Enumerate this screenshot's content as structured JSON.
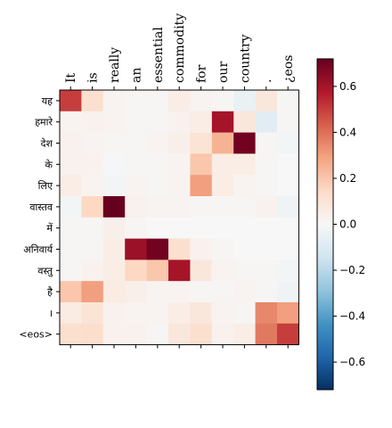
{
  "chart_data": {
    "type": "heatmap",
    "title": "",
    "x_tokens": [
      "It",
      "is",
      "really",
      "an",
      "essential",
      "commodity",
      "for",
      "our",
      "country",
      ".",
      "¿eos"
    ],
    "y_tokens": [
      "यह",
      "हमारे",
      "देश",
      "के",
      "लिए",
      "वास्तव",
      "में",
      "अनिवार्य",
      "वस्तु",
      "है",
      "।",
      "<eos>"
    ],
    "values": [
      [
        0.5,
        0.12,
        0.02,
        0.01,
        0.01,
        0.05,
        0.02,
        0.01,
        -0.05,
        0.08,
        0.01
      ],
      [
        0.02,
        0.03,
        0.02,
        0.01,
        0.01,
        0.03,
        0.05,
        0.6,
        0.08,
        -0.08,
        0.01
      ],
      [
        0.03,
        0.02,
        0.01,
        0.01,
        0.02,
        0.04,
        0.1,
        0.25,
        0.7,
        0.01,
        -0.02
      ],
      [
        0.03,
        0.03,
        -0.01,
        0.01,
        0.01,
        0.02,
        0.2,
        0.05,
        0.05,
        0.01,
        0.0
      ],
      [
        0.05,
        0.02,
        -0.02,
        0.02,
        0.01,
        0.02,
        0.3,
        0.05,
        0.02,
        0.01,
        0.0
      ],
      [
        -0.02,
        0.15,
        0.72,
        0.03,
        0.02,
        0.02,
        0.01,
        0.01,
        0.01,
        0.03,
        -0.03
      ],
      [
        0.01,
        0.01,
        0.04,
        0.01,
        0.0,
        0.0,
        0.0,
        0.0,
        0.0,
        0.0,
        0.0
      ],
      [
        0.01,
        0.01,
        0.05,
        0.62,
        0.7,
        0.12,
        0.03,
        0.01,
        0.0,
        0.0,
        0.0
      ],
      [
        0.01,
        0.03,
        0.05,
        0.15,
        0.2,
        0.6,
        0.08,
        0.02,
        0.01,
        0.01,
        -0.02
      ],
      [
        0.2,
        0.3,
        0.06,
        0.04,
        0.02,
        0.02,
        0.01,
        0.01,
        0.02,
        0.01,
        -0.03
      ],
      [
        0.06,
        0.1,
        0.03,
        0.02,
        0.02,
        0.05,
        0.08,
        0.02,
        0.01,
        0.35,
        0.3
      ],
      [
        0.12,
        0.13,
        0.03,
        0.03,
        0.01,
        0.08,
        0.12,
        0.03,
        0.05,
        0.38,
        0.5
      ]
    ],
    "colorbar": {
      "colormap": "RdBu_r",
      "vmin": -0.72,
      "vmax": 0.72,
      "ticks": [
        0.6,
        0.4,
        0.2,
        0.0,
        -0.2,
        -0.4,
        -0.6
      ],
      "tick_labels": [
        "0.6",
        "0.4",
        "0.2",
        "0.0",
        "−0.2",
        "−0.4",
        "−0.6"
      ]
    }
  }
}
